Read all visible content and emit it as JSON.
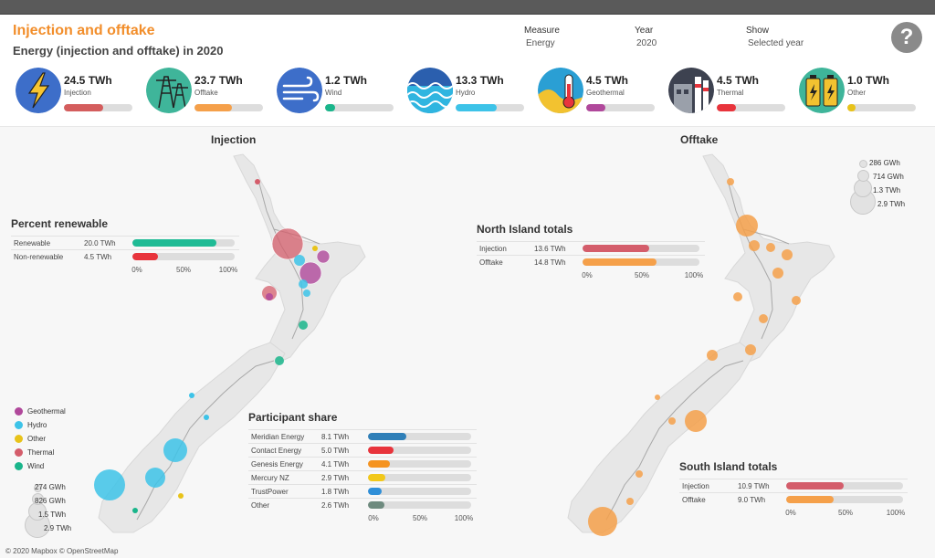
{
  "header": {
    "title": "Injection and offtake",
    "subtitle": "Energy (injection and offtake) in 2020",
    "filters": [
      {
        "label": "Measure",
        "value": "Energy"
      },
      {
        "label": "Year",
        "value": "2020"
      },
      {
        "label": "Show",
        "value": "Selected year"
      }
    ],
    "help": "?"
  },
  "kpis": [
    {
      "value": "24.5 TWh",
      "label": "Injection",
      "fraction": 0.57,
      "color": "#d45d5d",
      "icon": "lightning-icon"
    },
    {
      "value": "23.7 TWh",
      "label": "Offtake",
      "fraction": 0.55,
      "color": "#f5a04a",
      "icon": "transmission-tower-icon"
    },
    {
      "value": "1.2 TWh",
      "label": "Wind",
      "fraction": 0.14,
      "color": "#1ab58b",
      "icon": "wind-icon"
    },
    {
      "value": "13.3 TWh",
      "label": "Hydro",
      "fraction": 0.6,
      "color": "#3dc3e8",
      "icon": "water-waves-icon"
    },
    {
      "value": "4.5 TWh",
      "label": "Geothermal",
      "fraction": 0.28,
      "color": "#b0489b",
      "icon": "thermometer-icon"
    },
    {
      "value": "4.5 TWh",
      "label": "Thermal",
      "fraction": 0.28,
      "color": "#e8343c",
      "icon": "power-plant-icon"
    },
    {
      "value": "1.0 TWh",
      "label": "Other",
      "fraction": 0.12,
      "color": "#e8c31a",
      "icon": "battery-icon"
    }
  ],
  "maps": {
    "injection_title": "Injection",
    "offtake_title": "Offtake"
  },
  "percent_renewable": {
    "title": "Percent renewable",
    "rows": [
      {
        "name": "Renewable",
        "value": "20.0 TWh",
        "fraction": 0.82,
        "color": "#1fbb95"
      },
      {
        "name": "Non-renewable",
        "value": "4.5 TWh",
        "fraction": 0.25,
        "color": "#e8343c"
      }
    ],
    "axis": [
      "0%",
      "50%",
      "100%"
    ]
  },
  "north_island": {
    "title": "North Island totals",
    "rows": [
      {
        "name": "Injection",
        "value": "13.6 TWh",
        "fraction": 0.57,
        "color": "#d45d6b"
      },
      {
        "name": "Offtake",
        "value": "14.8 TWh",
        "fraction": 0.63,
        "color": "#f5a04a"
      }
    ],
    "axis": [
      "0%",
      "50%",
      "100%"
    ]
  },
  "south_island": {
    "title": "South Island totals",
    "rows": [
      {
        "name": "Injection",
        "value": "10.9 TWh",
        "fraction": 0.49,
        "color": "#d45d6b"
      },
      {
        "name": "Offtake",
        "value": "9.0 TWh",
        "fraction": 0.41,
        "color": "#f5a04a"
      }
    ],
    "axis": [
      "0%",
      "50%",
      "100%"
    ]
  },
  "participant_share": {
    "title": "Participant share",
    "rows": [
      {
        "name": "Meridian Energy",
        "value": "8.1 TWh",
        "fraction": 0.37,
        "color": "#2f7fb8"
      },
      {
        "name": "Contact Energy",
        "value": "5.0 TWh",
        "fraction": 0.25,
        "color": "#e8343c"
      },
      {
        "name": "Genesis Energy",
        "value": "4.1 TWh",
        "fraction": 0.21,
        "color": "#f5931f"
      },
      {
        "name": "Mercury NZ",
        "value": "2.9 TWh",
        "fraction": 0.17,
        "color": "#f2c81a"
      },
      {
        "name": "TrustPower",
        "value": "1.8 TWh",
        "fraction": 0.13,
        "color": "#2f8fd8"
      },
      {
        "name": "Other",
        "value": "2.6 TWh",
        "fraction": 0.16,
        "color": "#6e8a7e"
      }
    ],
    "axis": [
      "0%",
      "50%",
      "100%"
    ]
  },
  "legend": {
    "items": [
      {
        "label": "Geothermal",
        "color": "#b0489b"
      },
      {
        "label": "Hydro",
        "color": "#3dc3e8"
      },
      {
        "label": "Other",
        "color": "#e8c31a"
      },
      {
        "label": "Thermal",
        "color": "#d45d6b"
      },
      {
        "label": "Wind",
        "color": "#1ab58b"
      }
    ]
  },
  "injection_size_legend": [
    "274 GWh",
    "826 GWh",
    "1.5 TWh",
    "2.9 TWh"
  ],
  "offtake_size_legend": [
    "286 GWh",
    "714 GWh",
    "1.3 TWh",
    "2.9 TWh"
  ],
  "credit": "© 2020 Mapbox © OpenStreetMap"
}
